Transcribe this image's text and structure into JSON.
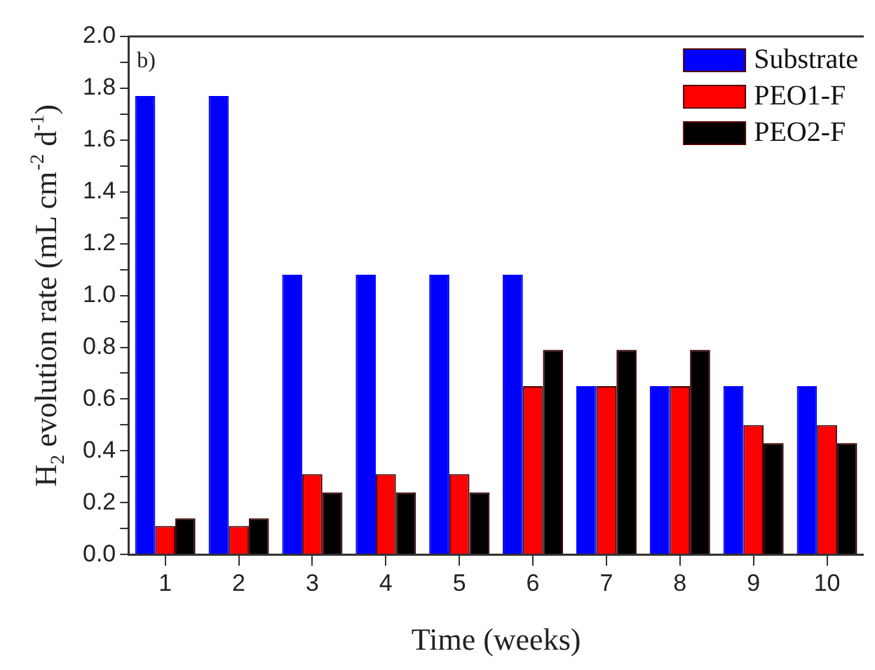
{
  "chart_data": {
    "type": "bar",
    "xlabel": "Time (weeks)",
    "ylabel": "H$_{2}$ evolution rate (mL cm$^{-2}$ d$^{-1}$)",
    "categories": [
      "1",
      "2",
      "3",
      "4",
      "5",
      "6",
      "7",
      "8",
      "9",
      "10"
    ],
    "series": [
      {
        "name": "Substrate",
        "color": "#0000ff",
        "values": [
          1.77,
          1.77,
          1.08,
          1.08,
          1.08,
          1.08,
          0.65,
          0.65,
          0.65,
          0.65
        ]
      },
      {
        "name": "PEO1-F",
        "color": "#ff0000",
        "values": [
          0.11,
          0.11,
          0.31,
          0.31,
          0.31,
          0.65,
          0.65,
          0.65,
          0.5,
          0.5
        ]
      },
      {
        "name": "PEO2-F",
        "color": "#000000",
        "values": [
          0.14,
          0.14,
          0.24,
          0.24,
          0.24,
          0.79,
          0.79,
          0.79,
          0.43,
          0.43
        ]
      }
    ],
    "ylim": [
      0,
      2.0
    ],
    "yticks": [
      {
        "value": 0,
        "label": "0.0"
      },
      {
        "value": 0.1,
        "label": null
      },
      {
        "value": 0.2,
        "label": "0.2"
      },
      {
        "value": 0.3,
        "label": null
      },
      {
        "value": 0.4,
        "label": "0.4"
      },
      {
        "value": 0.5,
        "label": null
      },
      {
        "value": 0.6,
        "label": "0.6"
      },
      {
        "value": 0.7,
        "label": null
      },
      {
        "value": 0.8,
        "label": "0.8"
      },
      {
        "value": 0.9,
        "label": null
      },
      {
        "value": 1.0,
        "label": "1.0"
      },
      {
        "value": 1.1,
        "label": null
      },
      {
        "value": 1.2,
        "label": "1.2"
      },
      {
        "value": 1.3,
        "label": null
      },
      {
        "value": 1.4,
        "label": "1.4"
      },
      {
        "value": 1.5,
        "label": null
      },
      {
        "value": 1.6,
        "label": "1.6"
      },
      {
        "value": 1.7,
        "label": null
      },
      {
        "value": 1.8,
        "label": "1.8"
      },
      {
        "value": 1.9,
        "label": null
      },
      {
        "value": 2.0,
        "label": "2.0"
      }
    ],
    "annotations": [
      "b)"
    ],
    "legend": "top right",
    "grid": false
  }
}
